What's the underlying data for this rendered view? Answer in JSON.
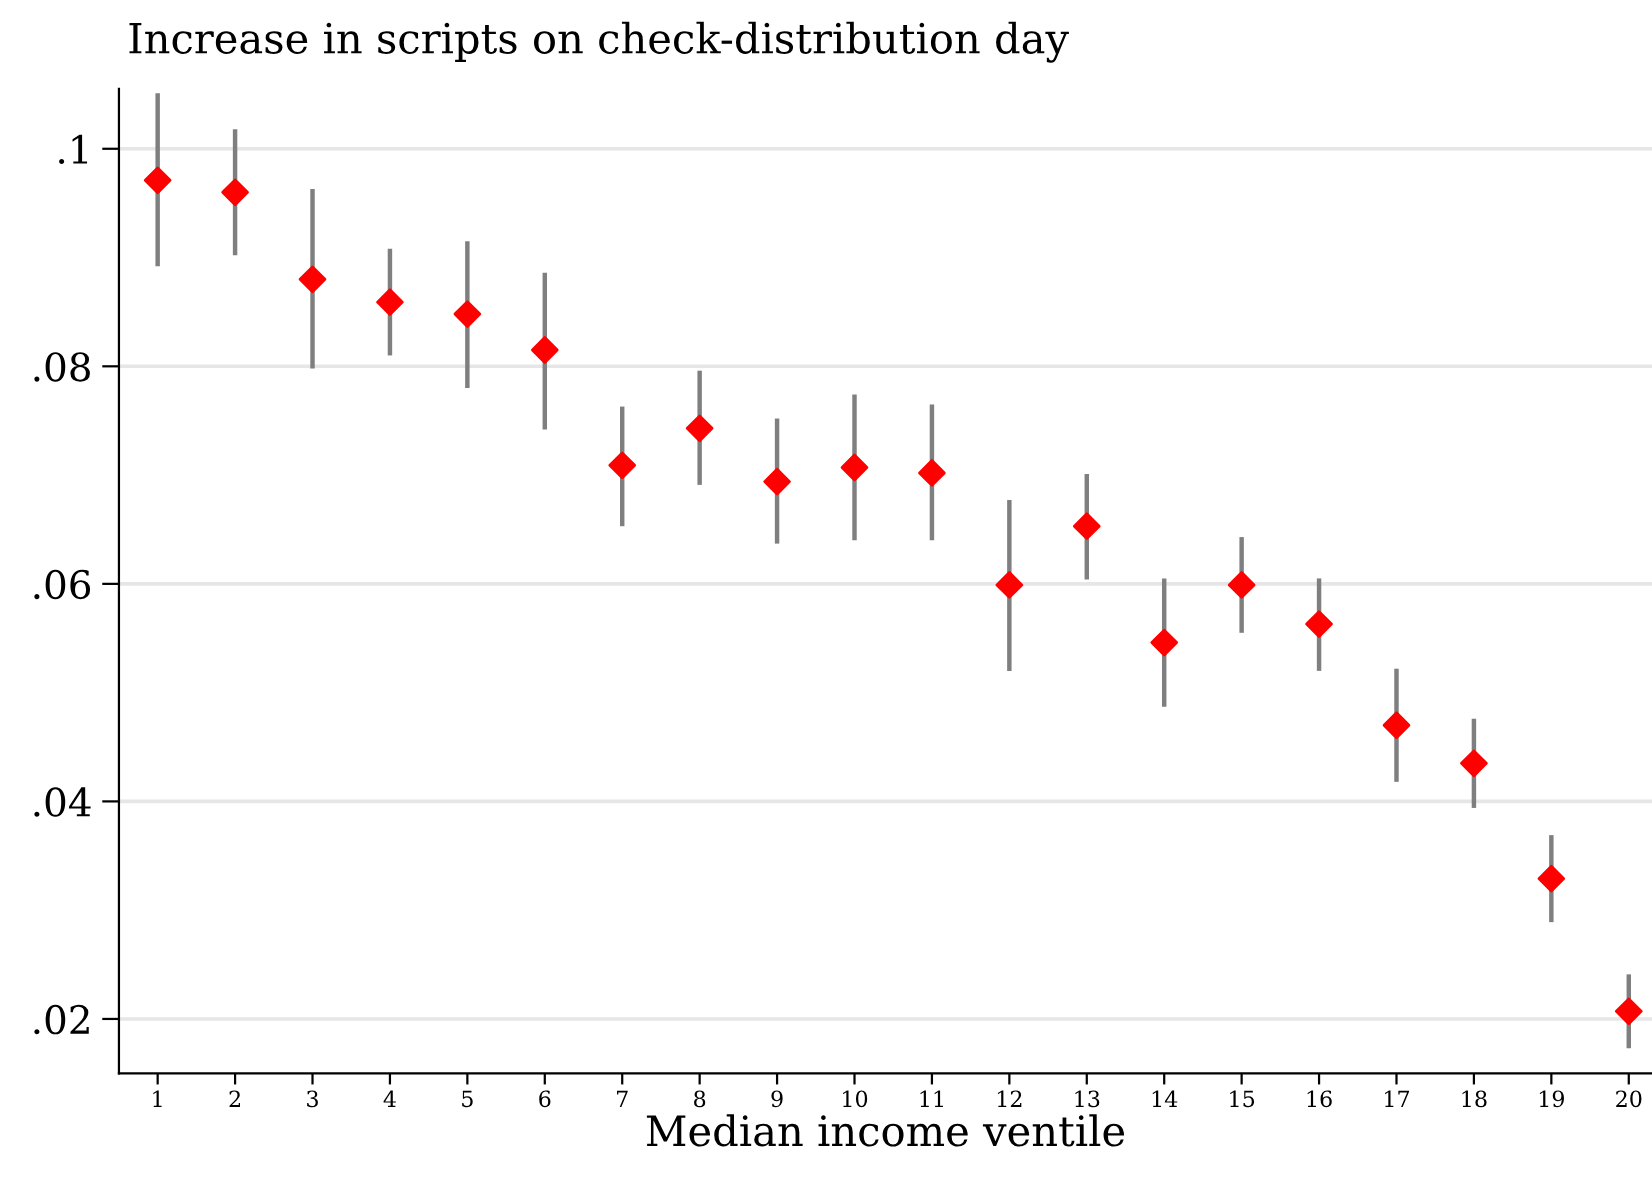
{
  "chart_data": {
    "type": "scatter",
    "title": "Increase in scripts on check-distribution day",
    "xlabel": "Median income ventile",
    "x": [
      1,
      2,
      3,
      4,
      5,
      6,
      7,
      8,
      9,
      10,
      11,
      12,
      13,
      14,
      15,
      16,
      17,
      18,
      19,
      20
    ],
    "series": [
      {
        "color": "#ff0000",
        "values": [
          0.0971,
          0.096,
          0.088,
          0.0859,
          0.0848,
          0.0815,
          0.0709,
          0.0743,
          0.0694,
          0.0707,
          0.0702,
          0.0599,
          0.0653,
          0.0546,
          0.0599,
          0.0563,
          0.047,
          0.0435,
          0.0329,
          0.0207
        ],
        "errors": [
          [
            0.0892,
            0.1051
          ],
          [
            0.0902,
            0.1018
          ],
          [
            0.0798,
            0.0963
          ],
          [
            0.081,
            0.0908
          ],
          [
            0.078,
            0.0915
          ],
          [
            0.0742,
            0.0886
          ],
          [
            0.0653,
            0.0763
          ],
          [
            0.0691,
            0.0796
          ],
          [
            0.0637,
            0.0752
          ],
          [
            0.064,
            0.0774
          ],
          [
            0.064,
            0.0765
          ],
          [
            0.052,
            0.0677
          ],
          [
            0.0604,
            0.0701
          ],
          [
            0.0487,
            0.0605
          ],
          [
            0.0555,
            0.0643
          ],
          [
            0.052,
            0.0605
          ],
          [
            0.0418,
            0.0522
          ],
          [
            0.0394,
            0.0476
          ],
          [
            0.0289,
            0.0369
          ],
          [
            0.0173,
            0.0241
          ]
        ]
      }
    ],
    "marker": "diamond",
    "grid": "y",
    "xlim": [
      0.5,
      20.3
    ],
    "xticks": [
      1,
      2,
      3,
      4,
      5,
      6,
      7,
      8,
      9,
      10,
      11,
      12,
      13,
      14,
      15,
      16,
      17,
      18,
      19,
      20
    ],
    "ylim": [
      0.015,
      0.1055
    ],
    "yticks": [
      {
        "value": 0.02,
        "label": ".02"
      },
      {
        "value": 0.04,
        "label": ".04"
      },
      {
        "value": 0.06,
        "label": ".06"
      },
      {
        "value": 0.08,
        "label": ".08"
      },
      {
        "value": 0.1,
        "label": ".1"
      }
    ]
  }
}
